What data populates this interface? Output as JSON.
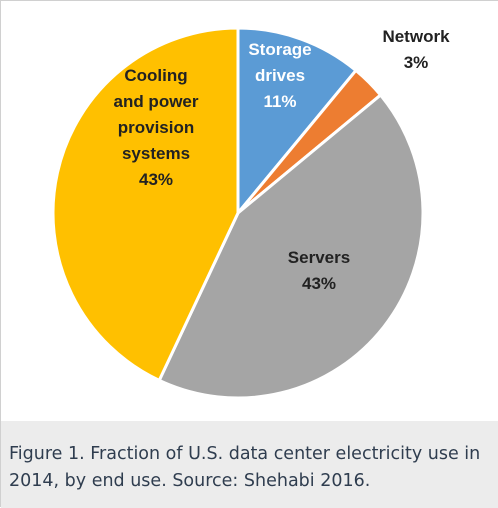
{
  "chart_data": {
    "type": "pie",
    "title": "",
    "slices": [
      {
        "label_lines": [
          "Storage",
          "drives"
        ],
        "value_label": "11%",
        "value": 11,
        "color": "#5b9bd5",
        "text_color": "#ffffff"
      },
      {
        "label_lines": [
          "Network"
        ],
        "value_label": "3%",
        "value": 3,
        "color": "#ed7d31",
        "text_color": "#222222"
      },
      {
        "label_lines": [
          "Servers"
        ],
        "value_label": "43%",
        "value": 43,
        "color": "#a5a5a5",
        "text_color": "#222222"
      },
      {
        "label_lines": [
          "Cooling",
          "and power",
          "provision",
          "systems"
        ],
        "value_label": "43%",
        "value": 43,
        "color": "#ffc000",
        "text_color": "#222222"
      }
    ],
    "legend": "none"
  },
  "caption": {
    "text": "Figure 1. Fraction of U.S. data center electricity use in 2014, by end use. Source: Shehabi 2016."
  }
}
